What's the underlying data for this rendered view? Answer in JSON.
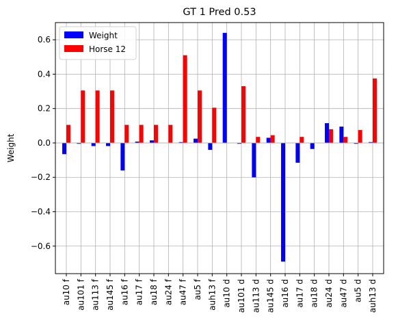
{
  "chart_data": {
    "type": "bar",
    "title": "GT 1 Pred 0.53",
    "xlabel": "",
    "ylabel": "Weight",
    "ylim": [
      -0.76,
      0.7
    ],
    "yticks": [
      -0.6,
      -0.4,
      -0.2,
      0.0,
      0.2,
      0.4,
      0.6
    ],
    "ytick_labels": [
      "−0.6",
      "−0.4",
      "−0.2",
      "0.0",
      "0.2",
      "0.4",
      "0.6"
    ],
    "grid": true,
    "legend_position": "top-left",
    "categories": [
      "au10 f",
      "au101 f",
      "au113 f",
      "au145 f",
      "au16 f",
      "au17 f",
      "au18 f",
      "au24 f",
      "au47 f",
      "au5 f",
      "auh13 f",
      "au10 d",
      "au101 d",
      "au113 d",
      "au145 d",
      "au16 d",
      "au17 d",
      "au18 d",
      "au24 d",
      "au47 d",
      "au5 d",
      "auh13 d"
    ],
    "series": [
      {
        "name": "Weight",
        "color": "#0000ff",
        "values": [
          -0.065,
          -0.005,
          -0.018,
          -0.018,
          -0.16,
          0.008,
          0.015,
          0.0,
          0.005,
          0.025,
          -0.04,
          0.64,
          -0.005,
          -0.2,
          0.03,
          -0.69,
          -0.115,
          -0.035,
          0.115,
          0.095,
          -0.005,
          0.005
        ]
      },
      {
        "name": "Horse 12",
        "color": "#ff0000",
        "values": [
          0.105,
          0.305,
          0.305,
          0.305,
          0.105,
          0.105,
          0.105,
          0.105,
          0.51,
          0.305,
          0.205,
          0.0,
          0.33,
          0.035,
          0.045,
          0.0,
          0.035,
          0.0,
          0.08,
          0.035,
          0.075,
          0.375
        ]
      }
    ]
  }
}
